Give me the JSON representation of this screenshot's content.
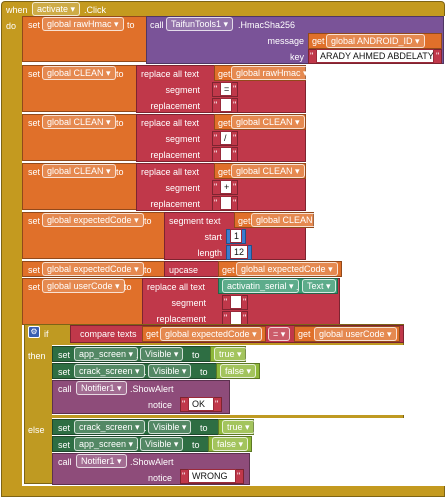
{
  "event": {
    "when": "when",
    "component": "activate",
    "dot_event": ".Click",
    "do": "do"
  },
  "kw": {
    "set": "set",
    "to": "to",
    "get": "get",
    "call": "call",
    "if": "if",
    "then": "then",
    "else": "else",
    "start": "start",
    "length": "length"
  },
  "b1": {
    "var": "global rawHmac",
    "component": "TaifunTools1",
    "method": ".HmacSha256",
    "message_label": "message",
    "message_get": "global ANDROID_ID",
    "key_label": "key",
    "key_value": "ARADY AHMED ABDELATY"
  },
  "b2": {
    "var": "global CLEAN",
    "fn": "replace all text",
    "get": "global rawHmac",
    "segment_label": "segment",
    "segment_value": "=",
    "replacement_label": "replacement",
    "replacement_value": ""
  },
  "b3": {
    "var": "global CLEAN",
    "fn": "replace all text",
    "get": "global CLEAN",
    "segment_label": "segment",
    "segment_value": "/",
    "replacement_label": "replacement",
    "replacement_value": ""
  },
  "b4": {
    "var": "global CLEAN",
    "fn": "replace all text",
    "get": "global CLEAN",
    "segment_label": "segment",
    "segment_value": "+",
    "replacement_label": "replacement",
    "replacement_value": ""
  },
  "b5": {
    "var": "global expectedCode",
    "fn": "segment  text",
    "get": "global CLEAN",
    "start": "1",
    "length": "12"
  },
  "b6": {
    "var": "global expectedCode",
    "fn": "upcase",
    "get": "global expectedCode"
  },
  "b7": {
    "var": "global userCode",
    "fn": "replace all text",
    "component": "activatin_serial",
    "prop": "Text",
    "segment_label": "segment",
    "segment_value": "",
    "replacement_label": "replacement",
    "replacement_value": ""
  },
  "if_block": {
    "fn": "compare texts",
    "left": "global expectedCode",
    "op": "=",
    "right": "global userCode"
  },
  "then_block": [
    {
      "component": "app_screen",
      "prop": "Visible",
      "value": "true"
    },
    {
      "component": "crack_screen",
      "prop": "Visible",
      "value": "false"
    }
  ],
  "then_alert": {
    "component": "Notifier1",
    "method": ".ShowAlert",
    "notice_label": "notice",
    "notice_value": "OK"
  },
  "else_block": [
    {
      "component": "crack_screen",
      "prop": "Visible",
      "value": "true"
    },
    {
      "component": "app_screen",
      "prop": "Visible",
      "value": "false"
    }
  ],
  "else_alert": {
    "component": "Notifier1",
    "method": ".ShowAlert",
    "notice_label": "notice",
    "notice_value": "WRONG"
  },
  "colors": {
    "event": "#c49a1f",
    "variables": "#e0702a",
    "text": "#c0384a",
    "components": "#7a5398",
    "screens": "#2e6e43",
    "logic": "#8fb83a",
    "math": "#3a7ccf"
  }
}
